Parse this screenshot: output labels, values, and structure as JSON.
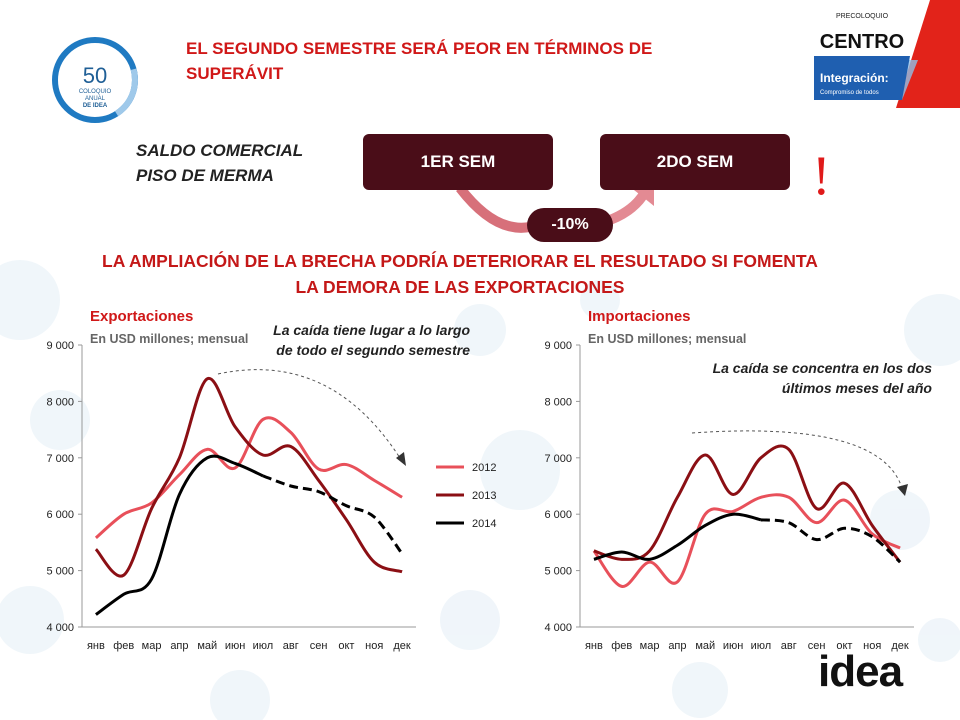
{
  "slide": {
    "title": "EL SEGUNDO SEMESTRE SERÁ PEOR EN TÉRMINOS DE SUPERÁVIT",
    "subtitle_line1": "SALDO COMERCIAL",
    "subtitle_line2": "PISO DE MERMA",
    "sem1_label": "1ER SEM",
    "sem2_label": "2DO SEM",
    "change_label": "-10%",
    "alert_mark": "!",
    "headline_line1": "LA AMPLIACIÓN DE LA BRECHA PODRÍA DETERIORAR EL RESULTADO SI FOMENTA",
    "headline_line2": "LA DEMORA DE LAS  EXPORTACIONES"
  },
  "logos": {
    "left_logo_number": "50",
    "left_logo_text": [
      "COLOQUIO",
      "ANUAL",
      "DE IDEA"
    ],
    "right_logo_top": "PRECOLOQUIO",
    "right_logo_main": "CENTRO",
    "right_logo_banner1": "Integración:",
    "right_logo_banner2": "Compromiso de todos",
    "bottom_logo": "idea"
  },
  "colors": {
    "accent_red": "#d01818",
    "dark_maroon": "#4a0d18",
    "series_2012": "#e8505a",
    "series_2013": "#8b0f14",
    "series_2014": "#000000"
  },
  "chart_data": [
    {
      "type": "line",
      "title": "Exportaciones",
      "subtitle": "En USD millones; mensual",
      "annotation": "La caída tiene lugar a lo largo de todo el segundo semestre",
      "categories": [
        "янв",
        "фев",
        "мар",
        "апр",
        "май",
        "июн",
        "июл",
        "авг",
        "сен",
        "окт",
        "ноя",
        "дек"
      ],
      "ylim": [
        4000,
        9000
      ],
      "yticks": [
        4000,
        5000,
        6000,
        7000,
        8000,
        9000
      ],
      "ytick_labels": [
        "4 000",
        "5 000",
        "6 000",
        "7 000",
        "8 000",
        "9 000"
      ],
      "legend_position": "right",
      "series": [
        {
          "name": "2012",
          "color": "#e8505a",
          "values": [
            5580,
            6000,
            6200,
            6700,
            7150,
            6820,
            7680,
            7450,
            6800,
            6880,
            6600,
            6300
          ]
        },
        {
          "name": "2013",
          "color": "#8b0f14",
          "values": [
            5380,
            4920,
            6100,
            7000,
            8400,
            7550,
            7050,
            7200,
            6600,
            5900,
            5150,
            4980
          ]
        },
        {
          "name": "2014",
          "color": "#000000",
          "values": [
            4220,
            4580,
            4850,
            6350,
            7000,
            6900,
            6680,
            6500,
            6400,
            6150,
            5950,
            5300
          ],
          "dashed_from_index": 6
        }
      ]
    },
    {
      "type": "line",
      "title": "Importaciones",
      "subtitle": "En USD millones; mensual",
      "annotation": "La caída se concentra en los dos últimos meses del año",
      "categories": [
        "янв",
        "фев",
        "мар",
        "апр",
        "май",
        "июн",
        "июл",
        "авг",
        "сен",
        "окт",
        "ноя",
        "дек"
      ],
      "ylim": [
        4000,
        9000
      ],
      "yticks": [
        4000,
        5000,
        6000,
        7000,
        8000,
        9000
      ],
      "ytick_labels": [
        "4 000",
        "5 000",
        "6 000",
        "7 000",
        "8 000",
        "9 000"
      ],
      "series": [
        {
          "name": "2012",
          "color": "#e8505a",
          "values": [
            5350,
            4720,
            5150,
            4800,
            6000,
            6050,
            6300,
            6300,
            5850,
            6250,
            5650,
            5400
          ]
        },
        {
          "name": "2013",
          "color": "#8b0f14",
          "values": [
            5350,
            5200,
            5350,
            6300,
            7050,
            6350,
            7000,
            7150,
            6100,
            6550,
            5800,
            5150
          ]
        },
        {
          "name": "2014",
          "color": "#000000",
          "values": [
            5200,
            5330,
            5200,
            5450,
            5800,
            6000,
            5900,
            5850,
            5550,
            5750,
            5600,
            5150
          ],
          "dashed_from_index": 6
        }
      ]
    }
  ]
}
